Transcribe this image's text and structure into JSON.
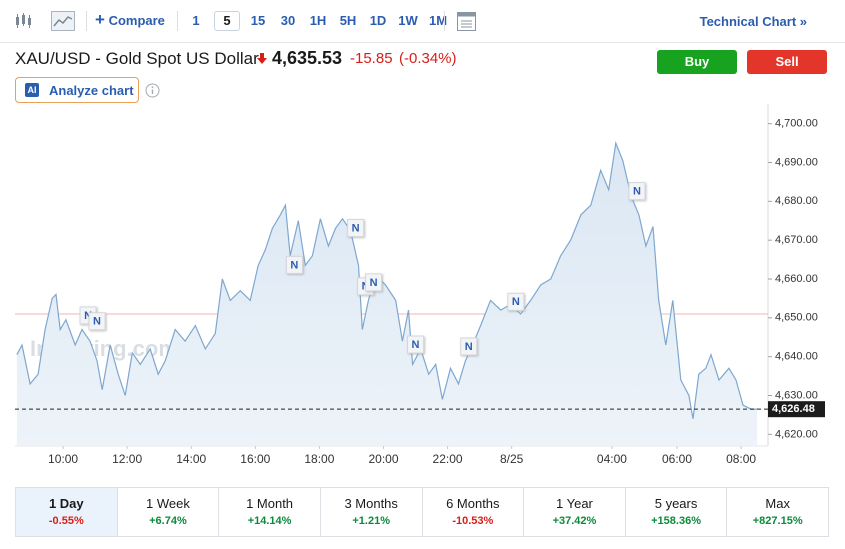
{
  "toolbar": {
    "compare": "Compare",
    "intervals": [
      "1",
      "5",
      "15",
      "30",
      "1H",
      "5H",
      "1D",
      "1W",
      "1M"
    ],
    "technical_chart": "Technical Chart »"
  },
  "header": {
    "symbol": "XAU/USD - Gold Spot US Dollar",
    "price": "4,635.53",
    "change": "-15.85",
    "change_pct": "(-0.34%)",
    "buy": "Buy",
    "sell": "Sell",
    "ai_badge": "AI",
    "analyze": "Analyze chart"
  },
  "chart_data": {
    "type": "line",
    "watermark": "Investing.com",
    "x": [
      8.56,
      8.72,
      8.97,
      9.22,
      9.44,
      9.66,
      9.78,
      9.91,
      10.09,
      10.38,
      10.59,
      10.84,
      11.06,
      11.22,
      11.47,
      11.72,
      11.94,
      12.16,
      12.41,
      12.72,
      12.97,
      13.19,
      13.5,
      13.81,
      14.13,
      14.44,
      14.75,
      14.97,
      15.22,
      15.53,
      15.84,
      16.09,
      16.31,
      16.53,
      16.78,
      16.94,
      17.09,
      17.34,
      17.56,
      17.78,
      18.03,
      18.28,
      18.5,
      18.72,
      18.97,
      19.22,
      19.34,
      19.53,
      19.75,
      20.06,
      20.38,
      20.59,
      20.78,
      20.91,
      21.16,
      21.41,
      21.63,
      21.84,
      22.09,
      22.34,
      22.56,
      22.78,
      23.03,
      23.34,
      23.66,
      23.97,
      24.28,
      24.59,
      24.91,
      25.22,
      25.53,
      25.84,
      26.16,
      26.47,
      26.78,
      27.03,
      27.25,
      27.47,
      27.72,
      27.97,
      28.19,
      28.41,
      28.59,
      28.81,
      29.03,
      29.28,
      29.53,
      29.66,
      29.84,
      30.06,
      30.22,
      30.47,
      30.78,
      31.0,
      31.22,
      31.47,
      31.66
    ],
    "series": [
      {
        "color": "#7ea7cf",
        "values": [
          4640.5,
          4643,
          4633,
          4635.5,
          4647,
          4655,
          4656,
          4647,
          4649.5,
          4643,
          4647,
          4644,
          4639,
          4631.5,
          4643,
          4635.5,
          4630,
          4641,
          4638,
          4642,
          4635.5,
          4639,
          4647,
          4644,
          4648,
          4642,
          4646,
          4660,
          4654.5,
          4657,
          4654.5,
          4663.5,
          4667.5,
          4673,
          4676.5,
          4679,
          4666,
          4675,
          4663.5,
          4666,
          4675.5,
          4668.5,
          4673,
          4675.5,
          4672.5,
          4663.5,
          4647,
          4654.5,
          4661,
          4658.5,
          4654.5,
          4644,
          4652,
          4638,
          4642,
          4635.5,
          4638,
          4629,
          4637,
          4633,
          4639,
          4643,
          4648,
          4654.5,
          4652,
          4653.5,
          4651,
          4654.5,
          4658.5,
          4660,
          4666,
          4670,
          4676.5,
          4679,
          4688,
          4683,
          4695,
          4690.5,
          4681.5,
          4676.5,
          4668.5,
          4673.5,
          4654.5,
          4643,
          4654.5,
          4634,
          4630,
          4624,
          4635.5,
          4637,
          4640.5,
          4634,
          4637,
          4634,
          4627.5,
          4626.5,
          4626.5
        ]
      }
    ],
    "xlim": [
      8.5,
      32
    ],
    "xticks": [
      {
        "value": 10,
        "label": "10:00"
      },
      {
        "value": 12,
        "label": "12:00"
      },
      {
        "value": 14,
        "label": "14:00"
      },
      {
        "value": 16,
        "label": "16:00"
      },
      {
        "value": 18,
        "label": "18:00"
      },
      {
        "value": 20,
        "label": "20:00"
      },
      {
        "value": 22,
        "label": "22:00"
      },
      {
        "value": 24,
        "label": "8/25"
      },
      {
        "value": 27.13,
        "label": "04:00"
      },
      {
        "value": 29.16,
        "label": "06:00"
      },
      {
        "value": 31.16,
        "label": "08:00"
      }
    ],
    "ylim": [
      4617,
      4703
    ],
    "yticks": [
      {
        "value": 4620,
        "label": "4,620.00"
      },
      {
        "value": 4630,
        "label": "4,630.00"
      },
      {
        "value": 4640,
        "label": "4,640.00"
      },
      {
        "value": 4650,
        "label": "4,650.00"
      },
      {
        "value": 4660,
        "label": "4,660.00"
      },
      {
        "value": 4670,
        "label": "4,670.00"
      },
      {
        "value": 4680,
        "label": "4,680.00"
      },
      {
        "value": 4690,
        "label": "4,690.00"
      },
      {
        "value": 4700,
        "label": "4,700.00"
      }
    ],
    "grid": false,
    "reference_line": {
      "value": 4651,
      "color": "#f2b6b6"
    },
    "last_price": {
      "value": 4626.48,
      "label": "4,626.48"
    },
    "news": [
      {
        "x": 10.78,
        "y": 4650.5,
        "label": "N"
      },
      {
        "x": 11.06,
        "y": 4649,
        "label": "N"
      },
      {
        "x": 17.22,
        "y": 4663.5,
        "label": "N"
      },
      {
        "x": 19.13,
        "y": 4673,
        "label": "N"
      },
      {
        "x": 19.44,
        "y": 4658,
        "label": "N"
      },
      {
        "x": 19.69,
        "y": 4659,
        "label": "N"
      },
      {
        "x": 21.0,
        "y": 4643,
        "label": "N"
      },
      {
        "x": 22.66,
        "y": 4642.5,
        "label": "N"
      },
      {
        "x": 24.13,
        "y": 4654,
        "label": "N"
      },
      {
        "x": 27.91,
        "y": 4682.5,
        "label": "N"
      }
    ]
  },
  "periods": [
    {
      "label": "1 Day",
      "change": "-0.55%"
    },
    {
      "label": "1 Week",
      "change": "+6.74%"
    },
    {
      "label": "1 Month",
      "change": "+14.14%"
    },
    {
      "label": "3 Months",
      "change": "+1.21%"
    },
    {
      "label": "6 Months",
      "change": "-10.53%"
    },
    {
      "label": "1 Year",
      "change": "+37.42%"
    },
    {
      "label": "5 years",
      "change": "+158.36%"
    },
    {
      "label": "Max",
      "change": "+827.15%"
    }
  ]
}
